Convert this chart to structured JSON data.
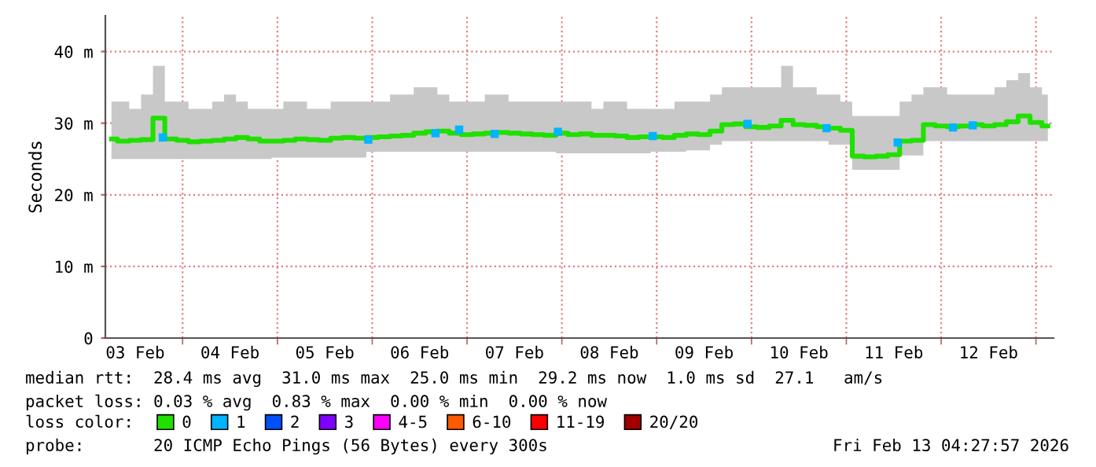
{
  "chart_data": {
    "type": "step",
    "ylabel": "Seconds",
    "legend_title": "loss color:",
    "legend": "bottom",
    "grid": true,
    "xlim": [
      "2026-02-03T04:27",
      "2026-02-13T04:27"
    ],
    "xticks": [
      {
        "value": "2026-02-03T12:00",
        "label": "03 Feb"
      },
      {
        "value": "2026-02-04T00:00",
        "label": null
      },
      {
        "value": "2026-02-04T12:00",
        "label": "04 Feb"
      },
      {
        "value": "2026-02-05T00:00",
        "label": null
      },
      {
        "value": "2026-02-05T12:00",
        "label": "05 Feb"
      },
      {
        "value": "2026-02-06T00:00",
        "label": null
      },
      {
        "value": "2026-02-06T12:00",
        "label": "06 Feb"
      },
      {
        "value": "2026-02-07T00:00",
        "label": null
      },
      {
        "value": "2026-02-07T12:00",
        "label": "07 Feb"
      },
      {
        "value": "2026-02-08T00:00",
        "label": null
      },
      {
        "value": "2026-02-08T12:00",
        "label": "08 Feb"
      },
      {
        "value": "2026-02-09T00:00",
        "label": null
      },
      {
        "value": "2026-02-09T12:00",
        "label": "09 Feb"
      },
      {
        "value": "2026-02-10T00:00",
        "label": null
      },
      {
        "value": "2026-02-10T12:00",
        "label": "10 Feb"
      },
      {
        "value": "2026-02-11T00:00",
        "label": null
      },
      {
        "value": "2026-02-11T12:00",
        "label": "11 Feb"
      },
      {
        "value": "2026-02-12T00:00",
        "label": null
      },
      {
        "value": "2026-02-12T12:00",
        "label": "12 Feb"
      },
      {
        "value": "2026-02-13T00:00",
        "label": null
      }
    ],
    "ylim": [
      0,
      45
    ],
    "yticks": [
      0,
      {
        "value": 10,
        "label": "10 m"
      },
      {
        "value": 20,
        "label": "20 m"
      },
      {
        "value": 30,
        "label": "30 m"
      },
      {
        "value": 40,
        "label": "40 m"
      }
    ],
    "annotations": [
      "median rtt:  28.4 ms avg  31.0 ms max  25.0 ms min  29.2 ms now  1.0 ms sd  27.1   am/s",
      "packet loss: 0.03 % avg  0.83 % max  0.00 % min  0.00 % now",
      "probe:       20 ICMP Echo Pings (56 Bytes) every 300s",
      "Fri Feb 13 04:27:57 2026"
    ],
    "series": [
      {
        "name": "0",
        "color": "#20e000",
        "x": [
          "2026-02-03T06:00",
          "2026-02-03T09:00",
          "2026-02-03T12:00",
          "2026-02-03T15:00",
          "2026-02-03T18:00",
          "2026-02-03T21:00",
          "2026-02-04T00:00",
          "2026-02-04T03:00",
          "2026-02-04T06:00",
          "2026-02-04T09:00",
          "2026-02-04T12:00",
          "2026-02-04T15:00",
          "2026-02-04T18:00",
          "2026-02-04T21:00",
          "2026-02-05T00:00",
          "2026-02-05T03:00",
          "2026-02-05T06:00",
          "2026-02-05T09:00",
          "2026-02-05T12:00",
          "2026-02-05T15:00",
          "2026-02-05T18:00",
          "2026-02-05T21:00",
          "2026-02-06T00:00",
          "2026-02-06T03:00",
          "2026-02-06T06:00",
          "2026-02-06T09:00",
          "2026-02-06T12:00",
          "2026-02-06T15:00",
          "2026-02-06T18:00",
          "2026-02-06T21:00",
          "2026-02-07T00:00",
          "2026-02-07T03:00",
          "2026-02-07T06:00",
          "2026-02-07T09:00",
          "2026-02-07T12:00",
          "2026-02-07T15:00",
          "2026-02-07T18:00",
          "2026-02-07T21:00",
          "2026-02-08T00:00",
          "2026-02-08T03:00",
          "2026-02-08T06:00",
          "2026-02-08T09:00",
          "2026-02-08T12:00",
          "2026-02-08T15:00",
          "2026-02-08T18:00",
          "2026-02-08T21:00",
          "2026-02-09T00:00",
          "2026-02-09T03:00",
          "2026-02-09T06:00",
          "2026-02-09T09:00",
          "2026-02-09T12:00",
          "2026-02-09T15:00",
          "2026-02-09T18:00",
          "2026-02-09T21:00",
          "2026-02-10T00:00",
          "2026-02-10T03:00",
          "2026-02-10T06:00",
          "2026-02-10T09:00",
          "2026-02-10T12:00",
          "2026-02-10T15:00",
          "2026-02-10T18:00",
          "2026-02-10T21:00",
          "2026-02-11T00:00",
          "2026-02-11T03:00",
          "2026-02-11T06:00",
          "2026-02-11T09:00",
          "2026-02-11T12:00",
          "2026-02-11T15:00",
          "2026-02-11T18:00",
          "2026-02-11T21:00",
          "2026-02-12T00:00",
          "2026-02-12T03:00",
          "2026-02-12T06:00",
          "2026-02-12T09:00",
          "2026-02-12T12:00",
          "2026-02-12T15:00",
          "2026-02-12T18:00",
          "2026-02-12T21:00",
          "2026-02-13T00:00",
          "2026-02-13T03:00"
        ],
        "values": [
          27.8,
          27.5,
          27.6,
          27.7,
          30.7,
          27.8,
          27.6,
          27.4,
          27.5,
          27.6,
          27.8,
          28.0,
          27.8,
          27.5,
          27.5,
          27.6,
          27.8,
          27.7,
          27.6,
          27.9,
          28.0,
          27.9,
          28.0,
          28.1,
          28.2,
          28.3,
          28.6,
          28.8,
          28.9,
          28.6,
          28.4,
          28.5,
          28.6,
          28.7,
          28.6,
          28.5,
          28.4,
          28.3,
          28.6,
          28.4,
          28.5,
          28.3,
          28.3,
          28.2,
          28.0,
          28.1,
          28.1,
          28.0,
          28.3,
          28.5,
          28.4,
          28.9,
          29.8,
          29.9,
          29.5,
          29.4,
          29.6,
          30.4,
          29.8,
          29.7,
          29.5,
          29.3,
          29.0,
          25.4,
          25.3,
          25.4,
          25.6,
          27.5,
          27.6,
          29.8,
          29.6,
          29.5,
          29.6,
          29.8,
          29.6,
          29.8,
          30.2,
          31.0,
          30.1,
          29.6
        ],
        "lower": [
          25.0,
          25.0,
          25.0,
          25.0,
          25.0,
          25.0,
          25.0,
          25.0,
          25.0,
          25.0,
          25.0,
          25.0,
          25.0,
          25.0,
          25.2,
          25.2,
          25.2,
          25.2,
          25.2,
          25.2,
          25.2,
          25.2,
          26.0,
          26.0,
          26.0,
          26.0,
          26.0,
          26.0,
          26.0,
          26.0,
          26.0,
          26.0,
          26.0,
          26.0,
          26.0,
          26.0,
          26.0,
          26.0,
          25.8,
          25.8,
          25.8,
          25.8,
          25.8,
          25.8,
          25.8,
          25.8,
          26.0,
          26.0,
          26.0,
          26.2,
          26.2,
          27.0,
          27.5,
          27.5,
          27.5,
          27.5,
          27.5,
          27.5,
          27.5,
          27.5,
          27.5,
          27.0,
          27.0,
          23.5,
          23.5,
          23.5,
          23.5,
          25.5,
          25.5,
          27.5,
          27.5,
          27.5,
          27.5,
          27.5,
          27.5,
          27.5,
          27.5,
          27.5,
          27.5,
          27.5
        ],
        "upper": [
          33,
          33,
          32,
          34,
          38,
          33,
          33,
          32,
          32,
          33,
          34,
          33,
          32,
          32,
          32,
          33,
          33,
          32,
          32,
          33,
          33,
          33,
          33,
          33,
          34,
          34,
          35,
          35,
          34,
          33,
          33,
          33,
          34,
          34,
          33,
          33,
          33,
          33,
          33,
          33,
          33,
          32,
          33,
          33,
          32,
          32,
          32,
          32,
          33,
          33,
          33,
          34,
          35,
          35,
          35,
          35,
          35,
          38,
          35,
          35,
          34,
          34,
          33,
          31,
          31,
          31,
          31,
          33,
          34,
          35,
          35,
          34,
          34,
          34,
          34,
          35,
          36,
          37,
          35,
          34
        ]
      },
      {
        "name": "1",
        "type": "scatter",
        "marker": "square",
        "color": "#00b4ff",
        "x": [
          "2026-02-03T19:00",
          "2026-02-05T23:00",
          "2026-02-06T16:00",
          "2026-02-06T22:00",
          "2026-02-07T07:00",
          "2026-02-07T23:00",
          "2026-02-08T23:00",
          "2026-02-09T23:00",
          "2026-02-10T19:00",
          "2026-02-11T13:00",
          "2026-02-12T03:00",
          "2026-02-12T08:00"
        ],
        "values": [
          28.0,
          27.7,
          28.6,
          29.1,
          28.5,
          28.8,
          28.2,
          29.9,
          29.3,
          27.3,
          29.4,
          29.7
        ]
      },
      {
        "name": "2",
        "type": "scatter",
        "marker": "square",
        "color": "#0050ff"
      },
      {
        "name": "3",
        "type": "scatter",
        "marker": "square",
        "color": "#8000ff"
      },
      {
        "name": "4-5",
        "type": "scatter",
        "marker": "square",
        "color": "#ff00ff"
      },
      {
        "name": "6-10",
        "type": "scatter",
        "marker": "square",
        "color": "#ff5a00"
      },
      {
        "name": "11-19",
        "type": "scatter",
        "marker": "square",
        "color": "#ff0000"
      },
      {
        "name": "20/20",
        "type": "scatter",
        "marker": "square",
        "color": "#a00000"
      }
    ]
  }
}
